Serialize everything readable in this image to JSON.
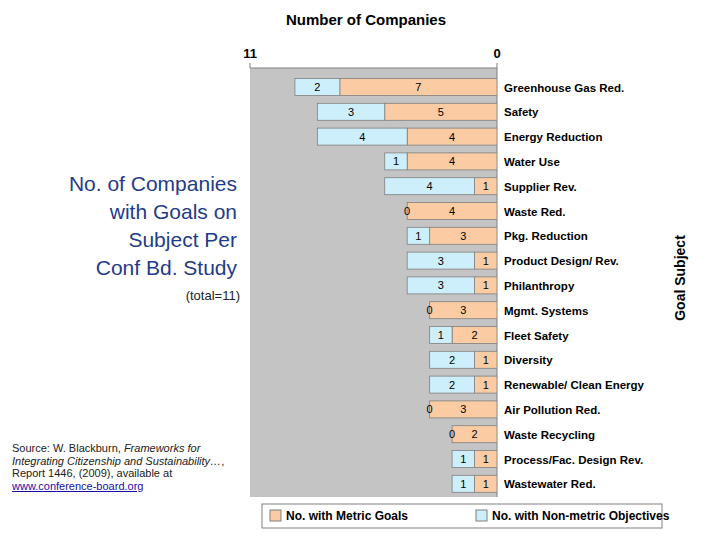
{
  "chart_data": {
    "type": "bar",
    "orientation": "horizontal",
    "stacked": true,
    "data_labels": true,
    "title": "Number of Companies",
    "y_label": "Goal Subject",
    "subtitle": [
      "No. of Companies",
      "with Goals on",
      "Subject Per",
      "Conf Bd. Study"
    ],
    "annotations": [
      "(total=11)",
      "Source: W. Blackburn, ",
      "Frameworks for Integrating Citizenship and Sustainability…",
      ", Report 1446, (2009), available at ",
      "www.conference-board.org"
    ],
    "categories": [
      "Greenhouse Gas Red.",
      "Safety",
      "Energy Reduction",
      "Water Use",
      "Supplier Rev.",
      "Waste Red.",
      "Pkg. Reduction",
      "Product Design/ Rev.",
      "Philanthropy",
      "Mgmt. Systems",
      "Fleet Safety",
      "Diversity",
      "Renewable/ Clean Energy",
      "Air Pollution Red.",
      "Waste Recycling",
      "Process/Fac. Design Rev.",
      "Wastewater Red."
    ],
    "series": [
      {
        "name": "No. with Metric Goals",
        "color": "#fbcca4",
        "values": [
          7,
          5,
          4,
          4,
          1,
          4,
          3,
          1,
          1,
          3,
          2,
          1,
          1,
          3,
          2,
          1,
          1
        ]
      },
      {
        "name": "No. with Non-metric Objectives",
        "color": "#cdeefb",
        "values": [
          2,
          3,
          4,
          1,
          4,
          0,
          1,
          3,
          3,
          0,
          1,
          2,
          2,
          0,
          0,
          1,
          1
        ]
      }
    ],
    "xlim": [
      0,
      11
    ],
    "xticks": [
      0,
      11
    ]
  }
}
